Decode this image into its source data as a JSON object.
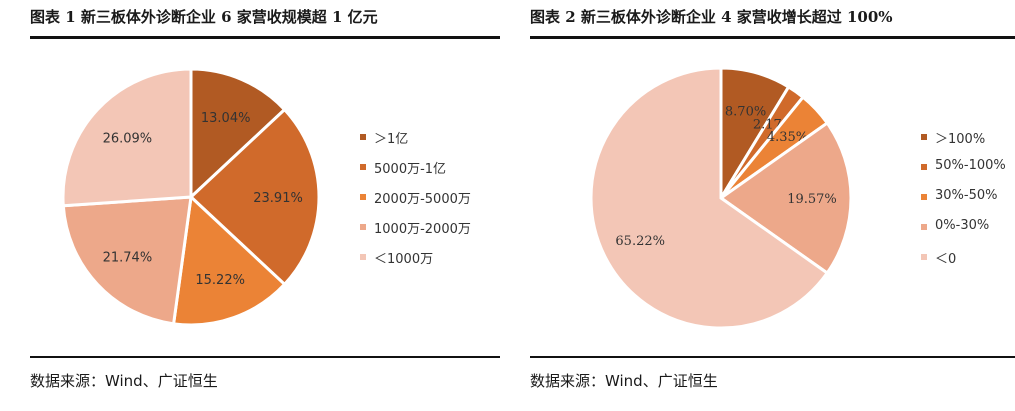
{
  "charts": [
    {
      "title": "图表 1 新三板体外诊断企业 6 家营收规模超 1 亿元",
      "source": "数据来源：Wind、广证恒生"
    },
    {
      "title": "图表 2 新三板体外诊断企业 4 家营收增长超过 100%",
      "source": "数据来源：Wind、广证恒生"
    }
  ],
  "chart_data": [
    {
      "type": "pie",
      "title": "图表 1 新三板体外诊断企业 6 家营收规模超 1 亿元",
      "slices": [
        {
          "label": "＞1亿",
          "value": 13.04,
          "display": "13.04%",
          "color": "#B15A23"
        },
        {
          "label": "5000万-1亿",
          "value": 23.91,
          "display": "23.91%",
          "color": "#D06A2B"
        },
        {
          "label": "2000万-5000万",
          "value": 15.22,
          "display": "15.22%",
          "color": "#EB8336"
        },
        {
          "label": "1000万-2000万",
          "value": 21.74,
          "display": "21.74%",
          "color": "#EDA88A"
        },
        {
          "label": "＜1000万",
          "value": 26.09,
          "display": "26.09%",
          "color": "#F3C6B6"
        }
      ],
      "legend_position": "right"
    },
    {
      "type": "pie",
      "title": "图表 2 新三板体外诊断企业 4 家营收增长超过 100%",
      "slices": [
        {
          "label": "＞100%",
          "value": 8.7,
          "display": "8.70%",
          "color": "#B15A23"
        },
        {
          "label": "50%-100%",
          "value": 2.17,
          "display": "2.17%",
          "color": "#D06A2B"
        },
        {
          "label": "30%-50%",
          "value": 4.35,
          "display": "4.35%",
          "color": "#EB8336"
        },
        {
          "label": "0%-30%",
          "value": 19.57,
          "display": "19.57%",
          "color": "#EDA88A"
        },
        {
          "label": "＜0",
          "value": 65.22,
          "display": "65.22%",
          "color": "#F3C6B6"
        }
      ],
      "legend_position": "right"
    }
  ]
}
